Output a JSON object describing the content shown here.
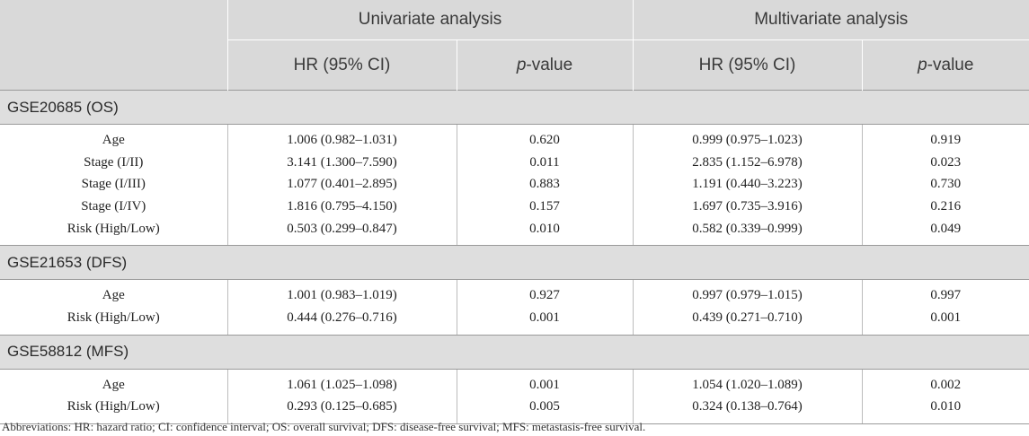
{
  "header": {
    "group_univariate": "Univariate analysis",
    "group_multivariate": "Multivariate analysis",
    "hr_label": "HR (95% CI)",
    "p_prefix": "p",
    "p_suffix": "-value"
  },
  "sections": [
    {
      "title": "GSE20685 (OS)",
      "rows": [
        {
          "variable": "Age",
          "uni_hr": "1.006 (0.982–1.031)",
          "uni_p": "0.620",
          "multi_hr": "0.999 (0.975–1.023)",
          "multi_p": "0.919"
        },
        {
          "variable": "Stage (I/II)",
          "uni_hr": "3.141 (1.300–7.590)",
          "uni_p": "0.011",
          "multi_hr": "2.835 (1.152–6.978)",
          "multi_p": "0.023"
        },
        {
          "variable": "Stage (I/III)",
          "uni_hr": "1.077 (0.401–2.895)",
          "uni_p": "0.883",
          "multi_hr": "1.191 (0.440–3.223)",
          "multi_p": "0.730"
        },
        {
          "variable": "Stage (I/IV)",
          "uni_hr": "1.816 (0.795–4.150)",
          "uni_p": "0.157",
          "multi_hr": "1.697 (0.735–3.916)",
          "multi_p": "0.216"
        },
        {
          "variable": "Risk (High/Low)",
          "uni_hr": "0.503 (0.299–0.847)",
          "uni_p": "0.010",
          "multi_hr": "0.582 (0.339–0.999)",
          "multi_p": "0.049"
        }
      ]
    },
    {
      "title": "GSE21653 (DFS)",
      "rows": [
        {
          "variable": "Age",
          "uni_hr": "1.001 (0.983–1.019)",
          "uni_p": "0.927",
          "multi_hr": "0.997 (0.979–1.015)",
          "multi_p": "0.997"
        },
        {
          "variable": "Risk (High/Low)",
          "uni_hr": "0.444 (0.276–0.716)",
          "uni_p": "0.001",
          "multi_hr": "0.439 (0.271–0.710)",
          "multi_p": "0.001"
        }
      ]
    },
    {
      "title": "GSE58812 (MFS)",
      "rows": [
        {
          "variable": "Age",
          "uni_hr": "1.061 (1.025–1.098)",
          "uni_p": "0.001",
          "multi_hr": "1.054 (1.020–1.089)",
          "multi_p": "0.002"
        },
        {
          "variable": "Risk (High/Low)",
          "uni_hr": "0.293 (0.125–0.685)",
          "uni_p": "0.005",
          "multi_hr": "0.324 (0.138–0.764)",
          "multi_p": "0.010"
        }
      ]
    }
  ],
  "footnote": "Abbreviations: HR: hazard ratio; CI: confidence interval; OS: overall survival; DFS: disease-free survival; MFS: metastasis-free survival."
}
